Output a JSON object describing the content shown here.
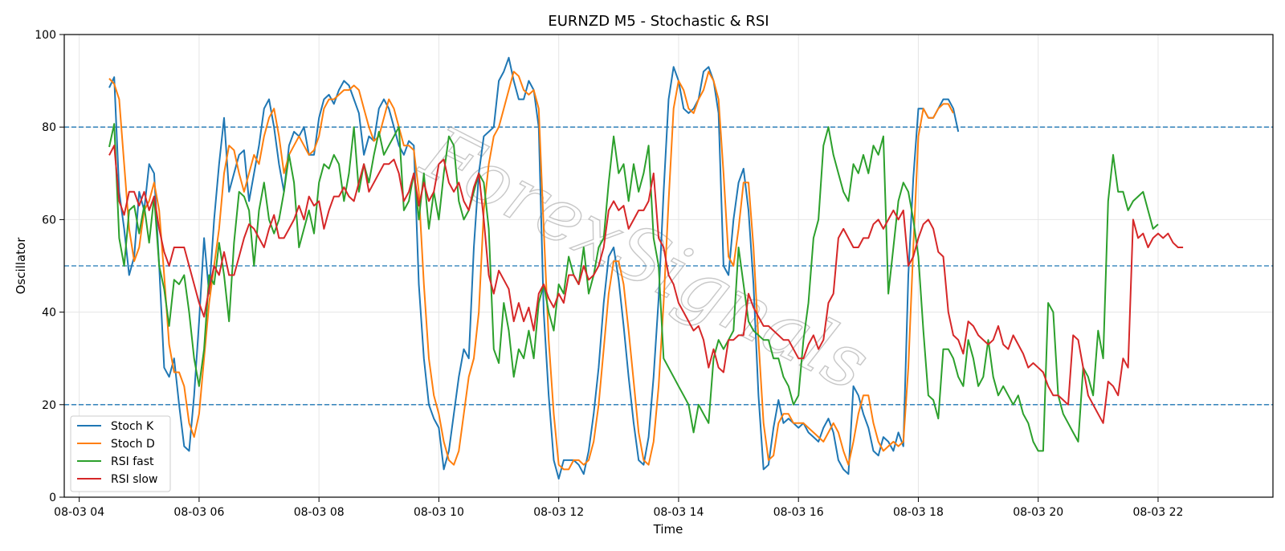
{
  "chart_data": {
    "type": "line",
    "title": "EURNZD M5 - Stochastic & RSI",
    "xlabel": "Time",
    "ylabel": "Oscillator",
    "ylim": [
      0,
      100
    ],
    "xlim": [
      "08-03 03:45",
      "08-03 23:55"
    ],
    "x_start": "08-03 04:30",
    "x_step_minutes": 5,
    "x_ticks": [
      "08-03 04",
      "08-03 06",
      "08-03 08",
      "08-03 10",
      "08-03 12",
      "08-03 14",
      "08-03 16",
      "08-03 18",
      "08-03 20",
      "08-03 22"
    ],
    "y_ticks": [
      0,
      20,
      40,
      60,
      80,
      100
    ],
    "reference_lines": [
      80,
      50,
      20
    ],
    "grid": true,
    "legend_position": "lower-left",
    "watermark": "ForexSignals",
    "series": [
      {
        "name": "Stoch K",
        "color": "#1f77b4",
        "values": [
          88.5,
          90.8,
          66,
          58,
          48,
          52,
          66,
          62,
          72,
          70,
          50,
          28,
          26,
          30,
          20,
          11,
          10,
          22,
          38,
          56,
          44,
          60,
          72,
          82,
          66,
          70,
          74,
          75,
          64,
          70,
          76,
          84,
          86,
          80,
          72,
          66,
          76,
          79,
          78,
          80,
          74,
          74,
          82,
          86,
          87,
          85,
          88,
          90,
          89,
          86,
          83,
          74,
          78,
          77,
          84,
          86,
          84,
          80,
          76,
          74,
          77,
          76,
          46,
          30,
          20,
          17,
          15,
          6,
          10,
          18,
          26,
          32,
          30,
          54,
          70,
          78,
          79,
          80,
          90,
          92,
          95,
          90,
          86,
          86,
          90,
          88,
          80,
          40,
          22,
          8,
          4,
          8,
          8,
          8,
          7,
          5,
          10,
          18,
          28,
          42,
          52,
          54,
          47,
          37,
          26,
          16,
          8,
          7,
          13,
          26,
          43,
          66,
          86,
          93,
          90,
          84,
          83,
          84,
          86,
          92,
          93,
          90,
          83,
          50,
          48,
          60,
          68,
          71,
          62,
          46,
          22,
          6,
          7,
          15,
          21,
          16,
          17,
          16,
          15,
          16,
          14,
          13,
          12,
          15,
          17,
          14,
          8,
          6,
          5,
          24,
          22,
          18,
          15,
          10,
          9,
          13,
          12,
          10,
          14,
          11,
          48,
          69,
          84,
          84,
          82,
          82,
          84,
          86,
          86,
          84,
          79
        ]
      },
      {
        "name": "Stoch D",
        "color": "#ff7f0e",
        "values": [
          90.5,
          89.3,
          86,
          72,
          58,
          51,
          54,
          62,
          64,
          68,
          62,
          48,
          33,
          27,
          27,
          24,
          16,
          13,
          18,
          30,
          42,
          50,
          58,
          70,
          76,
          75,
          70,
          66,
          70,
          74,
          72,
          78,
          82,
          84,
          78,
          70,
          74,
          76,
          78,
          76,
          74,
          75,
          78,
          84,
          86,
          86,
          87,
          88,
          88,
          89,
          88,
          84,
          80,
          77,
          78,
          82,
          86,
          84,
          80,
          76,
          76,
          75,
          66,
          46,
          30,
          22,
          18,
          12,
          8,
          7,
          10,
          18,
          26,
          30,
          40,
          62,
          72,
          78,
          80,
          84,
          88,
          92,
          91,
          88,
          87,
          88,
          84,
          58,
          34,
          18,
          7,
          6,
          6,
          8,
          8,
          7,
          8,
          12,
          20,
          32,
          44,
          51,
          51,
          46,
          36,
          25,
          14,
          8,
          7,
          12,
          24,
          42,
          64,
          84,
          90,
          88,
          84,
          83,
          86,
          88,
          92,
          90,
          86,
          70,
          52,
          50,
          58,
          68,
          68,
          54,
          34,
          16,
          8,
          9,
          16,
          18,
          18,
          16,
          16,
          16,
          15,
          14,
          13,
          12,
          14,
          16,
          14,
          10,
          7,
          12,
          18,
          22,
          22,
          16,
          12,
          10,
          11,
          12,
          11,
          12,
          28,
          54,
          78,
          84,
          82,
          82,
          84,
          85,
          85,
          83
        ]
      },
      {
        "name": "RSI fast",
        "color": "#2ca02c",
        "values": [
          75.7,
          80.7,
          56,
          50,
          62,
          63,
          57,
          63,
          55,
          65,
          50,
          45,
          37,
          47,
          46,
          48,
          40,
          30,
          24,
          32,
          48,
          46,
          55,
          48,
          38,
          55,
          66,
          65,
          62,
          50,
          62,
          68,
          60,
          57,
          60,
          66,
          74,
          68,
          54,
          58,
          62,
          57,
          68,
          72,
          71,
          74,
          72,
          64,
          70,
          80,
          66,
          72,
          68,
          74,
          79,
          74,
          76,
          78,
          80,
          62,
          64,
          70,
          60,
          70,
          58,
          66,
          60,
          70,
          78,
          76,
          64,
          60,
          62,
          66,
          70,
          68,
          58,
          32,
          29,
          42,
          36,
          26,
          32,
          30,
          36,
          30,
          42,
          46,
          40,
          36,
          46,
          44,
          52,
          48,
          46,
          54,
          44,
          48,
          54,
          56,
          68,
          78,
          70,
          72,
          64,
          72,
          66,
          70,
          76,
          56,
          50,
          30,
          28,
          26,
          24,
          22,
          20,
          14,
          20,
          18,
          16,
          30,
          34,
          32,
          34,
          36,
          54,
          46,
          38,
          36,
          35,
          34,
          34,
          30,
          30,
          26,
          24,
          20,
          22,
          34,
          42,
          56,
          60,
          76,
          80,
          74,
          70,
          66,
          64,
          72,
          70,
          74,
          70,
          76,
          74,
          78,
          44,
          54,
          64,
          68,
          66,
          60,
          52,
          36,
          22,
          21,
          17,
          32,
          32,
          30,
          26,
          24,
          34,
          30,
          24,
          26,
          34,
          26,
          22,
          24,
          22,
          20,
          22,
          18,
          16,
          12,
          10,
          10,
          42,
          40,
          22,
          18,
          16,
          14,
          12,
          28,
          26,
          22,
          36,
          30,
          64,
          74,
          66,
          66,
          62,
          64,
          65,
          66,
          62,
          58,
          59
        ]
      },
      {
        "name": "RSI slow",
        "color": "#d62728",
        "values": [
          73.9,
          76,
          64,
          61,
          66,
          66,
          63,
          66,
          62,
          65,
          58,
          53,
          50,
          54,
          54,
          54,
          50,
          46,
          42,
          39,
          45,
          50,
          48,
          53,
          48,
          48,
          52,
          56,
          59,
          58,
          56,
          54,
          58,
          61,
          56,
          56,
          58,
          60,
          63,
          60,
          65,
          63,
          64,
          58,
          62,
          65,
          65,
          67,
          65,
          64,
          68,
          72,
          66,
          68,
          70,
          72,
          72,
          73,
          70,
          64,
          66,
          70,
          63,
          68,
          64,
          66,
          72,
          73,
          68,
          66,
          68,
          64,
          62,
          67,
          70,
          60,
          48,
          44,
          49,
          47,
          45,
          38,
          42,
          38,
          41,
          36,
          44,
          46,
          43,
          41,
          44,
          42,
          48,
          48,
          46,
          50,
          47,
          48,
          50,
          54,
          62,
          64,
          62,
          63,
          58,
          60,
          62,
          62,
          64,
          70,
          56,
          54,
          48,
          46,
          42,
          40,
          38,
          36,
          37,
          34,
          28,
          32,
          28,
          27,
          34,
          34,
          35,
          35,
          44,
          41,
          39,
          37,
          37,
          36,
          35,
          34,
          34,
          32,
          30,
          30,
          33,
          35,
          32,
          34,
          42,
          44,
          56,
          58,
          56,
          54,
          54,
          56,
          56,
          59,
          60,
          58,
          60,
          62,
          60,
          62,
          50,
          52,
          56,
          59,
          60,
          58,
          53,
          52,
          40,
          35,
          34,
          31,
          38,
          37,
          35,
          34,
          33,
          34,
          37,
          33,
          32,
          35,
          33,
          31,
          28,
          29,
          28,
          27,
          24,
          22,
          22,
          21,
          20,
          35,
          34,
          28,
          22,
          20,
          18,
          16,
          25,
          24,
          22,
          30,
          28,
          60,
          56,
          57,
          54,
          56,
          57,
          56,
          57,
          55,
          54,
          54
        ]
      }
    ]
  }
}
